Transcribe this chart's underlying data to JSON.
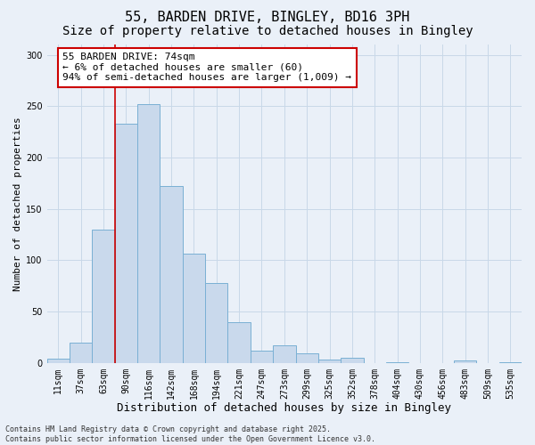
{
  "title_line1": "55, BARDEN DRIVE, BINGLEY, BD16 3PH",
  "title_line2": "Size of property relative to detached houses in Bingley",
  "xlabel": "Distribution of detached houses by size in Bingley",
  "ylabel": "Number of detached properties",
  "bin_labels": [
    "11sqm",
    "37sqm",
    "63sqm",
    "90sqm",
    "116sqm",
    "142sqm",
    "168sqm",
    "194sqm",
    "221sqm",
    "247sqm",
    "273sqm",
    "299sqm",
    "325sqm",
    "352sqm",
    "378sqm",
    "404sqm",
    "430sqm",
    "456sqm",
    "483sqm",
    "509sqm",
    "535sqm"
  ],
  "bar_heights": [
    4,
    20,
    130,
    233,
    252,
    172,
    106,
    78,
    40,
    12,
    17,
    9,
    3,
    5,
    0,
    1,
    0,
    0,
    2,
    0,
    1
  ],
  "bar_color": "#c9d9ec",
  "bar_edgecolor": "#7ab0d4",
  "grid_color": "#c8d8e8",
  "bg_color": "#eaf0f8",
  "vline_color": "#cc0000",
  "vline_x": 2.5,
  "annotation_text": "55 BARDEN DRIVE: 74sqm\n← 6% of detached houses are smaller (60)\n94% of semi-detached houses are larger (1,009) →",
  "annotation_box_facecolor": "#ffffff",
  "annotation_box_edgecolor": "#cc0000",
  "ylim": [
    0,
    310
  ],
  "yticks": [
    0,
    50,
    100,
    150,
    200,
    250,
    300
  ],
  "footnote": "Contains HM Land Registry data © Crown copyright and database right 2025.\nContains public sector information licensed under the Open Government Licence v3.0.",
  "title_fontsize": 11,
  "subtitle_fontsize": 10,
  "xlabel_fontsize": 9,
  "ylabel_fontsize": 8,
  "tick_fontsize": 7,
  "annotation_fontsize": 8,
  "footnote_fontsize": 6
}
